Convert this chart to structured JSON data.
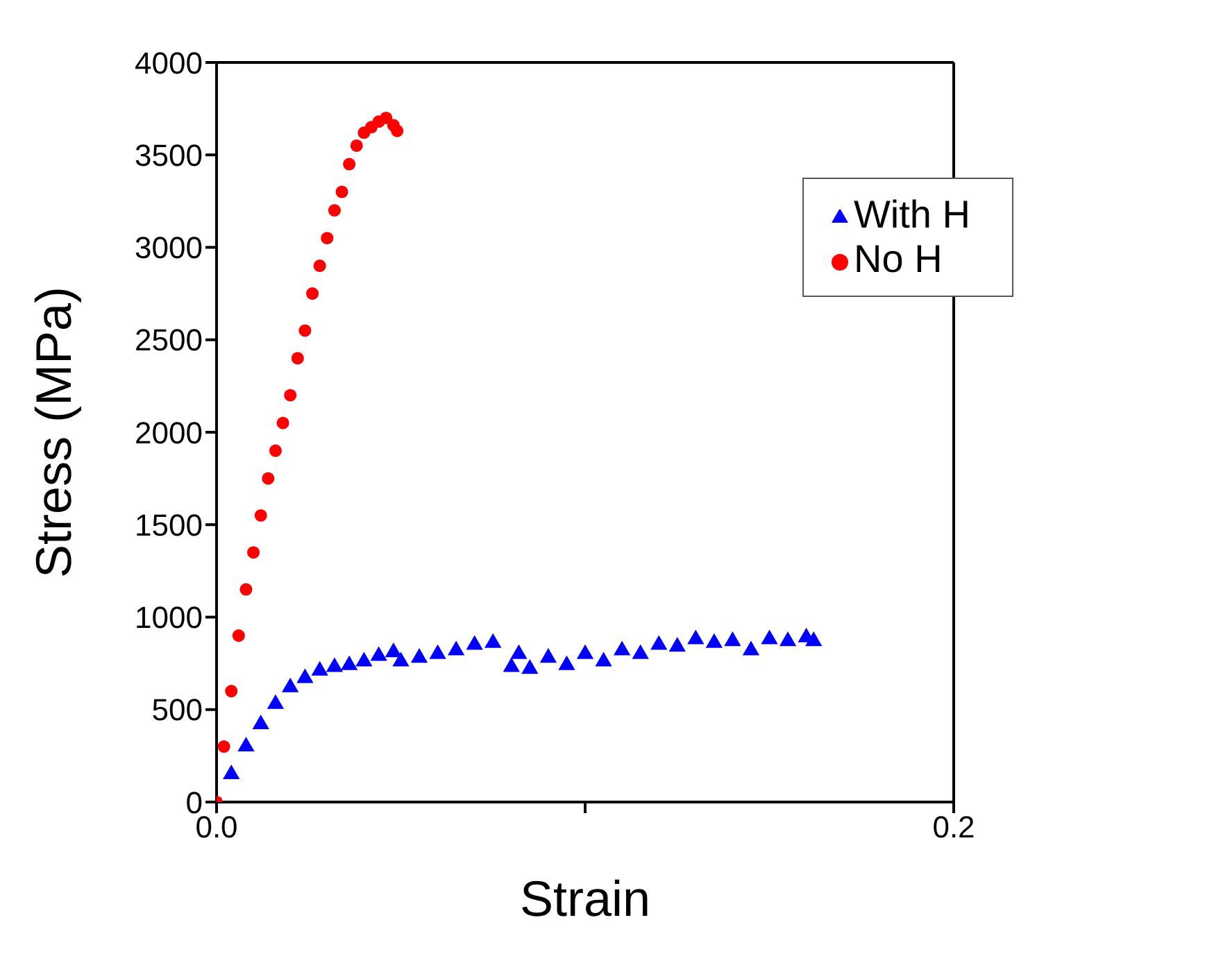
{
  "chart_data": {
    "type": "scatter",
    "xlabel": "Strain",
    "ylabel": "Stress (MPa)",
    "xlim": [
      0,
      0.2
    ],
    "xticks": [
      {
        "value": 0,
        "label": "0.0"
      },
      {
        "value": 0.1,
        "label": null
      },
      {
        "value": 0.2,
        "label": "0.2"
      }
    ],
    "ylim": [
      0,
      4000
    ],
    "yticks": [
      0,
      500,
      1000,
      1500,
      2000,
      2500,
      3000,
      3500,
      4000
    ],
    "legend": "top right",
    "series": [
      {
        "name": "With H",
        "color": "#0000ff",
        "marker": "triangle",
        "x": [
          0.004,
          0.008,
          0.012,
          0.016,
          0.02,
          0.024,
          0.028,
          0.032,
          0.036,
          0.04,
          0.044,
          0.048,
          0.05,
          0.055,
          0.06,
          0.065,
          0.07,
          0.075,
          0.08,
          0.082,
          0.085,
          0.09,
          0.095,
          0.1,
          0.105,
          0.11,
          0.115,
          0.12,
          0.125,
          0.13,
          0.135,
          0.14,
          0.145,
          0.15,
          0.155,
          0.16,
          0.162
        ],
        "values": [
          150,
          300,
          420,
          530,
          620,
          670,
          710,
          730,
          740,
          760,
          790,
          810,
          760,
          780,
          800,
          820,
          850,
          860,
          730,
          800,
          720,
          780,
          740,
          800,
          760,
          820,
          800,
          850,
          840,
          880,
          860,
          870,
          820,
          880,
          870,
          890,
          870
        ]
      },
      {
        "name": "No H",
        "color": "#ff0000",
        "marker": "circle",
        "x": [
          0,
          0.002,
          0.004,
          0.006,
          0.008,
          0.01,
          0.012,
          0.014,
          0.016,
          0.018,
          0.02,
          0.022,
          0.024,
          0.026,
          0.028,
          0.03,
          0.032,
          0.034,
          0.036,
          0.038,
          0.04,
          0.042,
          0.044,
          0.046,
          0.048,
          0.049
        ],
        "values": [
          0,
          300,
          600,
          900,
          1150,
          1350,
          1550,
          1750,
          1900,
          2050,
          2200,
          2400,
          2550,
          2750,
          2900,
          3050,
          3200,
          3300,
          3450,
          3550,
          3620,
          3650,
          3680,
          3700,
          3660,
          3630
        ]
      }
    ]
  }
}
